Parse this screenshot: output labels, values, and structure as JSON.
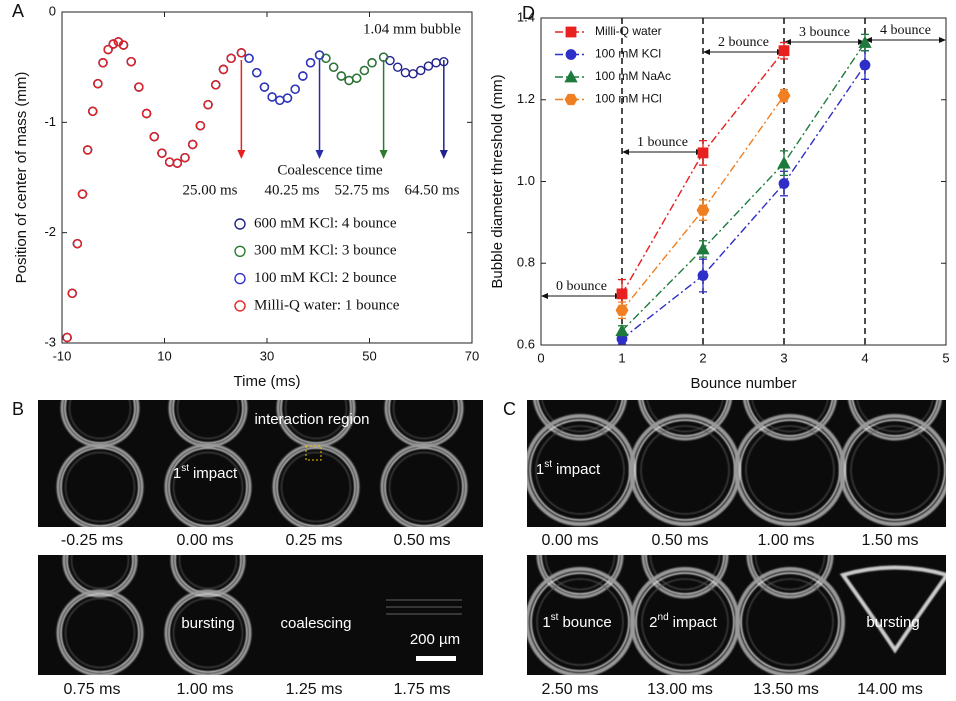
{
  "chart_data": [
    {
      "type": "scatter",
      "panel_label": "A",
      "xlabel": "Time (ms)",
      "ylabel": "Position of center of mass (mm)",
      "xlim": [
        -10,
        70
      ],
      "xticks": [
        -10,
        10,
        30,
        50,
        70
      ],
      "ylim": [
        -3,
        0
      ],
      "yticks": [
        0,
        -1,
        -2,
        -3
      ],
      "legend": "lower right",
      "x": [
        -9,
        -8,
        -7,
        -6,
        -5,
        -4,
        -3,
        -2,
        -1,
        0,
        1,
        2,
        3.5,
        5,
        6.5,
        8,
        9.5,
        11,
        12.5,
        14,
        15.5,
        17,
        18.5,
        20,
        21.5,
        23,
        25,
        26.5,
        28,
        29.5,
        31,
        32.5,
        34,
        35.5,
        37,
        38.5,
        40.25,
        41.5,
        43,
        44.5,
        46,
        47.5,
        49,
        50.5,
        52.75,
        54,
        55.5,
        57,
        58.5,
        60,
        61.5,
        63,
        64.5
      ],
      "series": [
        {
          "name": "600 mM KCl: 4 bounce",
          "color": "#22228c",
          "values": [
            -2.95,
            -2.55,
            -2.1,
            -1.65,
            -1.25,
            -0.9,
            -0.65,
            -0.46,
            -0.34,
            -0.29,
            -0.27,
            -0.3,
            -0.45,
            -0.68,
            -0.92,
            -1.13,
            -1.28,
            -1.36,
            -1.37,
            -1.32,
            -1.2,
            -1.03,
            -0.84,
            -0.66,
            -0.52,
            -0.42,
            -0.37,
            -0.42,
            -0.55,
            -0.68,
            -0.77,
            -0.8,
            -0.78,
            -0.7,
            -0.58,
            -0.46,
            -0.39,
            -0.42,
            -0.5,
            -0.58,
            -0.62,
            -0.6,
            -0.53,
            -0.46,
            -0.41,
            -0.44,
            -0.5,
            -0.55,
            -0.56,
            -0.53,
            -0.49,
            -0.46,
            -0.45
          ]
        },
        {
          "name": "300 mM KCl: 3 bounce",
          "color": "#2c7a2c",
          "values": [
            -2.95,
            -2.55,
            -2.1,
            -1.65,
            -1.25,
            -0.9,
            -0.65,
            -0.46,
            -0.34,
            -0.29,
            -0.27,
            -0.3,
            -0.45,
            -0.68,
            -0.92,
            -1.13,
            -1.28,
            -1.36,
            -1.37,
            -1.32,
            -1.2,
            -1.03,
            -0.84,
            -0.66,
            -0.52,
            -0.42,
            -0.37,
            -0.42,
            -0.55,
            -0.68,
            -0.77,
            -0.8,
            -0.78,
            -0.7,
            -0.58,
            -0.46,
            -0.39,
            -0.42,
            -0.5,
            -0.58,
            -0.62,
            -0.6,
            -0.53,
            -0.46,
            -0.41,
            null,
            null,
            null,
            null,
            null,
            null,
            null,
            null
          ]
        },
        {
          "name": "100 mM KCl: 2 bounce",
          "color": "#3333cc",
          "values": [
            -2.95,
            -2.55,
            -2.1,
            -1.65,
            -1.25,
            -0.9,
            -0.65,
            -0.46,
            -0.34,
            -0.29,
            -0.27,
            -0.3,
            -0.45,
            -0.68,
            -0.92,
            -1.13,
            -1.28,
            -1.36,
            -1.37,
            -1.32,
            -1.2,
            -1.03,
            -0.84,
            -0.66,
            -0.52,
            -0.42,
            -0.37,
            -0.42,
            -0.55,
            -0.68,
            -0.77,
            -0.8,
            -0.78,
            -0.7,
            -0.58,
            -0.46,
            -0.39,
            null,
            null,
            null,
            null,
            null,
            null,
            null,
            null,
            null,
            null,
            null,
            null,
            null,
            null,
            null,
            null
          ]
        },
        {
          "name": "Milli-Q water: 1 bounce",
          "color": "#e8201f",
          "values": [
            -2.95,
            -2.55,
            -2.1,
            -1.65,
            -1.25,
            -0.9,
            -0.65,
            -0.46,
            -0.34,
            -0.29,
            -0.27,
            -0.3,
            -0.45,
            -0.68,
            -0.92,
            -1.13,
            -1.28,
            -1.36,
            -1.37,
            -1.32,
            -1.2,
            -1.03,
            -0.84,
            -0.66,
            -0.52,
            -0.42,
            -0.37,
            null,
            null,
            null,
            null,
            null,
            null,
            null,
            null,
            null,
            null,
            null,
            null,
            null,
            null,
            null,
            null,
            null,
            null,
            null,
            null,
            null,
            null,
            null,
            null,
            null,
            null
          ]
        }
      ],
      "bubble_label": "1.04 mm bubble",
      "coalescence_title": "Coalescence time",
      "arrows": [
        {
          "x": 25,
          "label": "25.00 ms",
          "color": "#e8201f"
        },
        {
          "x": 40.25,
          "label": "40.25 ms",
          "color": "#2a2aaa"
        },
        {
          "x": 52.75,
          "label": "52.75 ms",
          "color": "#2c7a2c"
        },
        {
          "x": 64.5,
          "label": "64.50 ms",
          "color": "#22228c"
        }
      ]
    },
    {
      "type": "line",
      "panel_label": "D",
      "xlabel": "Bounce number",
      "ylabel": "Bubble diameter threshold (mm)",
      "xlim": [
        0,
        5
      ],
      "xticks": [
        0,
        1,
        2,
        3,
        4,
        5
      ],
      "ylim": [
        0.6,
        1.4
      ],
      "yticks": [
        0.6,
        0.8,
        {
          "value": 1,
          "label": "1.0"
        },
        1.2,
        1.4
      ],
      "legend": "upper left",
      "x": [
        1,
        2,
        3,
        4
      ],
      "series": [
        {
          "name": "Milli-Q water",
          "color": "#e8201f",
          "marker": "square",
          "values": [
            0.725,
            1.07,
            1.32,
            null
          ],
          "errors": [
            0.035,
            0.03,
            0.02,
            null
          ]
        },
        {
          "name": "100 mM KCl",
          "color": "#2e2ec8",
          "marker": "circle",
          "values": [
            0.615,
            0.77,
            0.995,
            1.285
          ],
          "errors": [
            0.012,
            0.04,
            0.03,
            0.035
          ]
        },
        {
          "name": "100 mM NaAc",
          "color": "#1e7a3c",
          "marker": "triangle",
          "values": [
            0.635,
            0.835,
            1.045,
            1.34
          ],
          "errors": [
            0.012,
            0.02,
            0.03,
            0.02
          ]
        },
        {
          "name": "100 mM HCl",
          "color": "#f07f22",
          "marker": "hexagon",
          "values": [
            0.685,
            0.93,
            1.21,
            null
          ],
          "errors": [
            0.02,
            0.025,
            0.015,
            null
          ]
        }
      ],
      "regions": [
        {
          "label": "0 bounce",
          "from": 0,
          "to": 1
        },
        {
          "label": "1 bounce",
          "from": 1,
          "to": 2
        },
        {
          "label": "2 bounce",
          "from": 2,
          "to": 3
        },
        {
          "label": "3 bounce",
          "from": 3,
          "to": 4
        },
        {
          "label": "4 bounce",
          "from": 4,
          "to": 5
        }
      ]
    }
  ],
  "panel_B": {
    "label": "B",
    "top_times": [
      "-0.25 ms",
      "0.00 ms",
      "0.25 ms",
      "0.50 ms"
    ],
    "bottom_times": [
      "0.75 ms",
      "1.00 ms",
      "1.25 ms",
      "1.75 ms"
    ],
    "interaction_region": "interaction region",
    "first_impact": {
      "n": "1",
      "sup": "st",
      "text": "impact"
    },
    "bursting": "bursting",
    "coalescing": "coalescing",
    "scale_bar": "200 µm"
  },
  "panel_C": {
    "label": "C",
    "top_times": [
      "0.00 ms",
      "0.50 ms",
      "1.00 ms",
      "1.50 ms"
    ],
    "bottom_times": [
      "2.50 ms",
      "13.00 ms",
      "13.50 ms",
      "14.00 ms"
    ],
    "first_impact": {
      "n": "1",
      "sup": "st",
      "text": "impact"
    },
    "first_bounce": {
      "n": "1",
      "sup": "st",
      "text": "bounce"
    },
    "second_impact": {
      "n": "2",
      "sup": "nd",
      "text": "impact"
    },
    "bursting": "bursting"
  }
}
